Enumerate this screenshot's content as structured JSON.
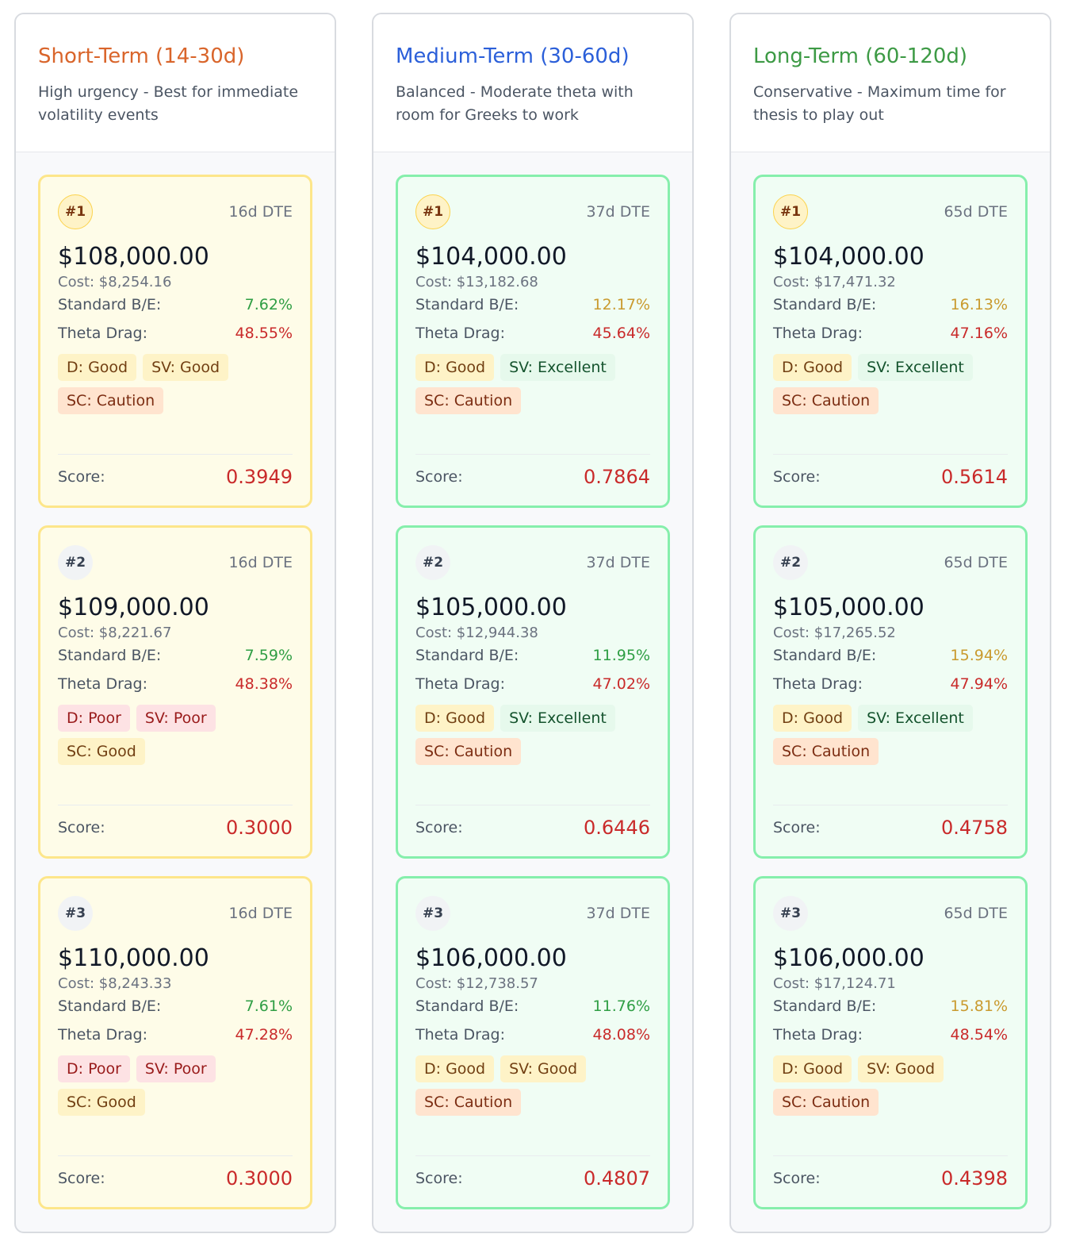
{
  "columns": [
    {
      "title": "Short-Term (14-30d)",
      "title_color": "#d9652b",
      "description": "High urgency - Best for immediate volatility events",
      "card_style": "yellow",
      "cards": [
        {
          "rank": "#1",
          "dte": "16d DTE",
          "strike": "$108,000.00",
          "cost": "Cost: $8,254.16",
          "be_label": "Standard B/E:",
          "be": "7.62%",
          "be_color": "#2f9e44",
          "theta_label": "Theta Drag:",
          "theta": "48.55%",
          "tags": [
            {
              "text": "D: Good",
              "type": "good"
            },
            {
              "text": "SV: Good",
              "type": "good"
            },
            {
              "text": "SC: Caution",
              "type": "caution"
            }
          ],
          "score_label": "Score:",
          "score": "0.3949"
        },
        {
          "rank": "#2",
          "dte": "16d DTE",
          "strike": "$109,000.00",
          "cost": "Cost: $8,221.67",
          "be_label": "Standard B/E:",
          "be": "7.59%",
          "be_color": "#2f9e44",
          "theta_label": "Theta Drag:",
          "theta": "48.38%",
          "tags": [
            {
              "text": "D: Poor",
              "type": "poor"
            },
            {
              "text": "SV: Poor",
              "type": "poor"
            },
            {
              "text": "SC: Good",
              "type": "good"
            }
          ],
          "score_label": "Score:",
          "score": "0.3000"
        },
        {
          "rank": "#3",
          "dte": "16d DTE",
          "strike": "$110,000.00",
          "cost": "Cost: $8,243.33",
          "be_label": "Standard B/E:",
          "be": "7.61%",
          "be_color": "#2f9e44",
          "theta_label": "Theta Drag:",
          "theta": "47.28%",
          "tags": [
            {
              "text": "D: Poor",
              "type": "poor"
            },
            {
              "text": "SV: Poor",
              "type": "poor"
            },
            {
              "text": "SC: Good",
              "type": "good"
            }
          ],
          "score_label": "Score:",
          "score": "0.3000"
        }
      ]
    },
    {
      "title": "Medium-Term (30-60d)",
      "title_color": "#2b5fd9",
      "description": "Balanced - Moderate theta with room for Greeks to work",
      "card_style": "green",
      "cards": [
        {
          "rank": "#1",
          "dte": "37d DTE",
          "strike": "$104,000.00",
          "cost": "Cost: $13,182.68",
          "be_label": "Standard B/E:",
          "be": "12.17%",
          "be_color": "#c99a2e",
          "theta_label": "Theta Drag:",
          "theta": "45.64%",
          "tags": [
            {
              "text": "D: Good",
              "type": "good"
            },
            {
              "text": "SV: Excellent",
              "type": "excellent"
            },
            {
              "text": "SC: Caution",
              "type": "caution"
            }
          ],
          "score_label": "Score:",
          "score": "0.7864"
        },
        {
          "rank": "#2",
          "dte": "37d DTE",
          "strike": "$105,000.00",
          "cost": "Cost: $12,944.38",
          "be_label": "Standard B/E:",
          "be": "11.95%",
          "be_color": "#2f9e44",
          "theta_label": "Theta Drag:",
          "theta": "47.02%",
          "tags": [
            {
              "text": "D: Good",
              "type": "good"
            },
            {
              "text": "SV: Excellent",
              "type": "excellent"
            },
            {
              "text": "SC: Caution",
              "type": "caution"
            }
          ],
          "score_label": "Score:",
          "score": "0.6446"
        },
        {
          "rank": "#3",
          "dte": "37d DTE",
          "strike": "$106,000.00",
          "cost": "Cost: $12,738.57",
          "be_label": "Standard B/E:",
          "be": "11.76%",
          "be_color": "#2f9e44",
          "theta_label": "Theta Drag:",
          "theta": "48.08%",
          "tags": [
            {
              "text": "D: Good",
              "type": "good"
            },
            {
              "text": "SV: Good",
              "type": "good"
            },
            {
              "text": "SC: Caution",
              "type": "caution"
            }
          ],
          "score_label": "Score:",
          "score": "0.4807"
        }
      ]
    },
    {
      "title": "Long-Term (60-120d)",
      "title_color": "#3d9a45",
      "description": "Conservative - Maximum time for thesis to play out",
      "card_style": "green",
      "cards": [
        {
          "rank": "#1",
          "dte": "65d DTE",
          "strike": "$104,000.00",
          "cost": "Cost: $17,471.32",
          "be_label": "Standard B/E:",
          "be": "16.13%",
          "be_color": "#c99a2e",
          "theta_label": "Theta Drag:",
          "theta": "47.16%",
          "tags": [
            {
              "text": "D: Good",
              "type": "good"
            },
            {
              "text": "SV: Excellent",
              "type": "excellent"
            },
            {
              "text": "SC: Caution",
              "type": "caution"
            }
          ],
          "score_label": "Score:",
          "score": "0.5614"
        },
        {
          "rank": "#2",
          "dte": "65d DTE",
          "strike": "$105,000.00",
          "cost": "Cost: $17,265.52",
          "be_label": "Standard B/E:",
          "be": "15.94%",
          "be_color": "#c99a2e",
          "theta_label": "Theta Drag:",
          "theta": "47.94%",
          "tags": [
            {
              "text": "D: Good",
              "type": "good"
            },
            {
              "text": "SV: Excellent",
              "type": "excellent"
            },
            {
              "text": "SC: Caution",
              "type": "caution"
            }
          ],
          "score_label": "Score:",
          "score": "0.4758"
        },
        {
          "rank": "#3",
          "dte": "65d DTE",
          "strike": "$106,000.00",
          "cost": "Cost: $17,124.71",
          "be_label": "Standard B/E:",
          "be": "15.81%",
          "be_color": "#c99a2e",
          "theta_label": "Theta Drag:",
          "theta": "48.54%",
          "tags": [
            {
              "text": "D: Good",
              "type": "good"
            },
            {
              "text": "SV: Good",
              "type": "good"
            },
            {
              "text": "SC: Caution",
              "type": "caution"
            }
          ],
          "score_label": "Score:",
          "score": "0.4398"
        }
      ]
    }
  ],
  "colors": {
    "theta": "#c92a2a",
    "score": "#c92a2a"
  }
}
